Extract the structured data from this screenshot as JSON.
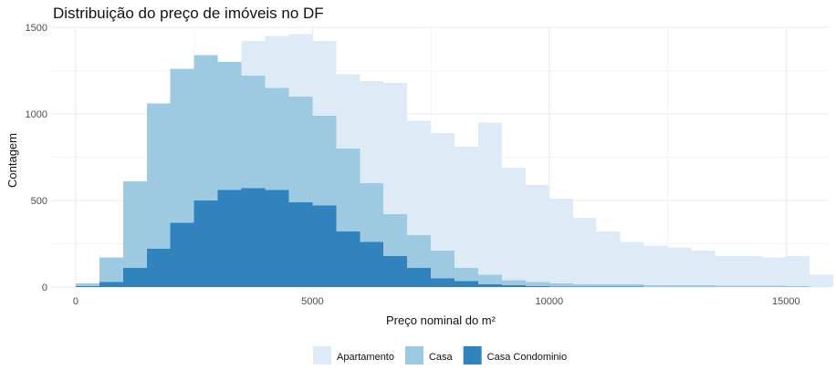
{
  "chart_data": {
    "type": "bar",
    "title": "Distribuição do preço de imóveis no DF",
    "xlabel": "Preço nominal do m²",
    "ylabel": "Contagem",
    "xlim": [
      -500,
      15900
    ],
    "ylim": [
      0,
      1500
    ],
    "x_ticks": [
      0,
      5000,
      10000,
      15000
    ],
    "x_tick_labels": [
      "0",
      "5000",
      "10000",
      "15000"
    ],
    "y_ticks": [
      0,
      500,
      1000,
      1500
    ],
    "y_tick_labels": [
      "0",
      "500",
      "1000",
      "1500"
    ],
    "grid": true,
    "legend_position": "bottom",
    "bin_width": 500,
    "bins_start": 250,
    "series": [
      {
        "name": "Apartamento",
        "color": "#deebf7",
        "values": [
          10,
          15,
          80,
          120,
          350,
          1110,
          1290,
          1420,
          1450,
          1460,
          1420,
          1230,
          1190,
          1180,
          960,
          890,
          810,
          950,
          690,
          590,
          510,
          400,
          320,
          260,
          240,
          230,
          210,
          180,
          180,
          170,
          180,
          70
        ]
      },
      {
        "name": "Casa",
        "color": "#9ecae1",
        "values": [
          20,
          170,
          610,
          1060,
          1260,
          1340,
          1300,
          1220,
          1150,
          1100,
          990,
          800,
          600,
          420,
          300,
          210,
          110,
          70,
          40,
          30,
          20,
          15,
          15,
          15,
          10,
          10,
          10,
          8,
          8,
          8,
          6,
          0
        ]
      },
      {
        "name": "Casa Condominio",
        "color": "#3182bd",
        "values": [
          5,
          30,
          110,
          220,
          370,
          500,
          560,
          570,
          560,
          490,
          470,
          320,
          260,
          180,
          110,
          50,
          35,
          15,
          10,
          5,
          3,
          2,
          2,
          2,
          1,
          1,
          1,
          1,
          1,
          1,
          1,
          0
        ]
      }
    ]
  }
}
